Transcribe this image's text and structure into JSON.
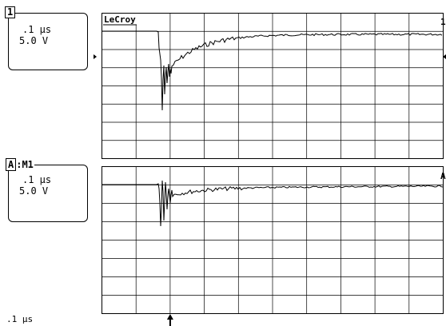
{
  "channel1": {
    "tag": "1",
    "timebase": ".1 µs",
    "volts_per_div": "5.0 V"
  },
  "channelA": {
    "tag": "A",
    "math": ":M1",
    "timebase": ".1 µs",
    "volts_per_div": "5.0 V"
  },
  "screen": {
    "brand": "LeCroy",
    "trace1_marker": "1",
    "traceA_marker": "A",
    "grid_divisions_x": 10,
    "grid_divisions_y": 8
  },
  "bottom": {
    "timebase_readout": ".1 µs",
    "trigger_position_div": 2
  },
  "colors": {
    "trace": "#000000",
    "grid": "#000000",
    "background": "#ffffff"
  }
}
